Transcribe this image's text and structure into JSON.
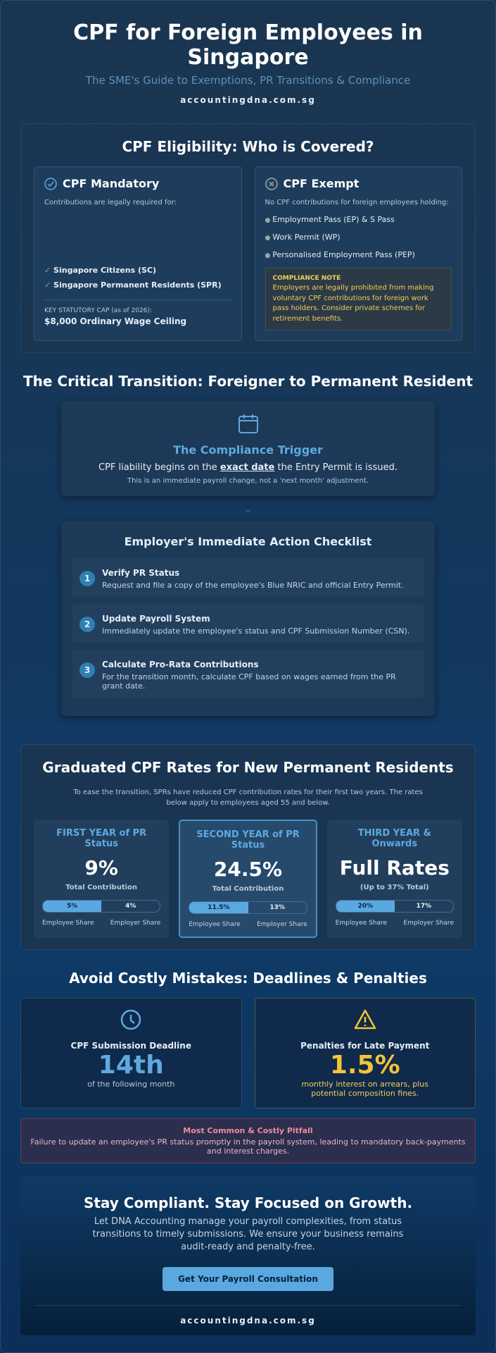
{
  "header": {
    "title": "CPF for Foreign Employees in Singapore",
    "subtitle": "The SME's Guide to Exemptions, PR Transitions & Compliance",
    "website": "accountingdna.com.sg"
  },
  "eligibility": {
    "title": "CPF Eligibility: Who is Covered?",
    "mandatory": {
      "title": "CPF Mandatory",
      "intro": "Contributions are legally required for:",
      "items": [
        "Singapore Citizens (SC)",
        "Singapore Permanent Residents (SPR)"
      ],
      "cap_label": "KEY STATUTORY CAP (as of 2026):",
      "cap_value": "$8,000 Ordinary Wage Ceiling"
    },
    "exempt": {
      "title": "CPF Exempt",
      "intro": "No CPF contributions for foreign employees holding:",
      "items": [
        "Employment Pass (EP) & S Pass",
        "Work Permit (WP)",
        "Personalised Employment Pass (PEP)"
      ],
      "note_title": "COMPLIANCE NOTE",
      "note_text": "Employers are legally prohibited from making voluntary CPF contributions for foreign work pass holders. Consider private schemes for retirement benefits."
    }
  },
  "transition": {
    "title": "The Critical Transition: Foreigner to Permanent Resident",
    "trigger": {
      "title": "The Compliance Trigger",
      "text_before": "CPF liability begins on the",
      "text_emphasis": "exact date",
      "text_after": "the Entry Permit is issued.",
      "subtext": "This is an immediate payroll change, not a 'next month' adjustment."
    },
    "checklist": {
      "title": "Employer's Immediate Action Checklist",
      "steps": [
        {
          "number": "1",
          "title": "Verify PR Status",
          "text": "Request and file a copy of the employee's Blue NRIC and official Entry Permit."
        },
        {
          "number": "2",
          "title": "Update Payroll System",
          "text": "Immediately update the employee's status and CPF Submission Number (CSN)."
        },
        {
          "number": "3",
          "title": "Calculate Pro-Rata Contributions",
          "text": "For the transition month, calculate CPF based on wages earned from the PR grant date."
        }
      ]
    }
  },
  "rates": {
    "title": "Graduated CPF Rates for New Permanent Residents",
    "intro": "To ease the transition, SPRs have reduced CPF contribution rates for their first two years. The rates below apply to employees aged 55 and below.",
    "cards": [
      {
        "title": "FIRST YEAR of PR Status",
        "value": "9%",
        "label": "Total Contribution",
        "employee_share": "5%",
        "employer_share": "4%",
        "employee_label": "Employee Share",
        "employer_label": "Employer Share"
      },
      {
        "title": "SECOND YEAR of PR Status",
        "value": "24.5%",
        "label": "Total Contribution",
        "employee_share": "11.5%",
        "employer_share": "13%",
        "employee_label": "Employee Share",
        "employer_label": "Employer Share"
      },
      {
        "title": "THIRD YEAR & Onwards",
        "value": "Full Rates",
        "label": "(Up to 37% Total)",
        "employee_share": "20%",
        "employer_share": "17%",
        "employee_label": "Employee Share",
        "employer_label": "Employer Share"
      }
    ]
  },
  "penalties": {
    "title": "Avoid Costly Mistakes: Deadlines & Penalties",
    "cards": [
      {
        "title": "CPF Submission Deadline",
        "value": "14th",
        "text": "of the following month"
      },
      {
        "title": "Penalties for Late Payment",
        "value": "1.5%",
        "text": "monthly interest on arrears, plus potential composition fines."
      }
    ],
    "pitfall": {
      "title": "Most Common & Costly Pitfall",
      "text": "Failure to update an employee's PR status promptly in the payroll system, leading to mandatory back-payments and interest charges."
    }
  },
  "cta": {
    "title": "Stay Compliant. Stay Focused on Growth.",
    "text": "Let DNA Accounting manage your payroll complexities, from status transitions to timely submissions. We ensure your business remains audit-ready and penalty-free.",
    "button": "Get Your Payroll Consultation",
    "website": "accountingdna.com.sg"
  }
}
